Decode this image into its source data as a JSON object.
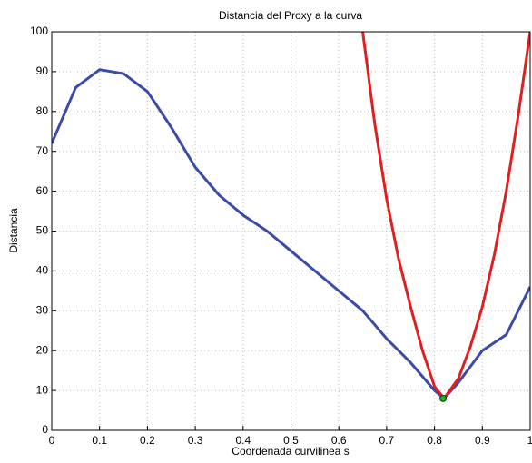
{
  "chart_data": {
    "type": "line",
    "title": "Distancia del Proxy a la curva",
    "x_label": "Coordenada curvilinea s",
    "y_label": "Distancia",
    "xlim": [
      0,
      1
    ],
    "ylim": [
      0,
      100
    ],
    "xticks": [
      0,
      0.1,
      0.2,
      0.3,
      0.4,
      0.5,
      0.6,
      0.7,
      0.8,
      0.9,
      1
    ],
    "yticks": [
      0,
      10,
      20,
      30,
      40,
      50,
      60,
      70,
      80,
      90,
      100
    ],
    "grid": true,
    "series": [
      {
        "color": "#3a4ca8",
        "mode": "line",
        "x": [
          0,
          0.05,
          0.1,
          0.15,
          0.2,
          0.25,
          0.3,
          0.35,
          0.4,
          0.45,
          0.5,
          0.55,
          0.6,
          0.65,
          0.7,
          0.75,
          0.8,
          0.82,
          0.85,
          0.9,
          0.95,
          1.0
        ],
        "values": [
          72,
          86,
          90.5,
          89.5,
          85,
          76,
          66,
          59,
          54,
          50,
          45,
          40,
          35,
          30,
          23,
          17,
          10,
          8,
          12,
          20,
          24,
          36
        ]
      },
      {
        "color": "#e02020",
        "mode": "line",
        "x": [
          0.65,
          0.675,
          0.7,
          0.725,
          0.75,
          0.775,
          0.8,
          0.82,
          0.85,
          0.875,
          0.9,
          0.925,
          0.95,
          0.975,
          1.0
        ],
        "values": [
          100,
          77,
          58,
          43,
          31,
          20,
          11,
          8,
          13,
          21,
          31,
          44,
          60,
          79,
          100
        ]
      },
      {
        "color": "#22aa22",
        "mode": "marker",
        "x": [
          0.818
        ],
        "values": [
          8
        ]
      }
    ]
  }
}
